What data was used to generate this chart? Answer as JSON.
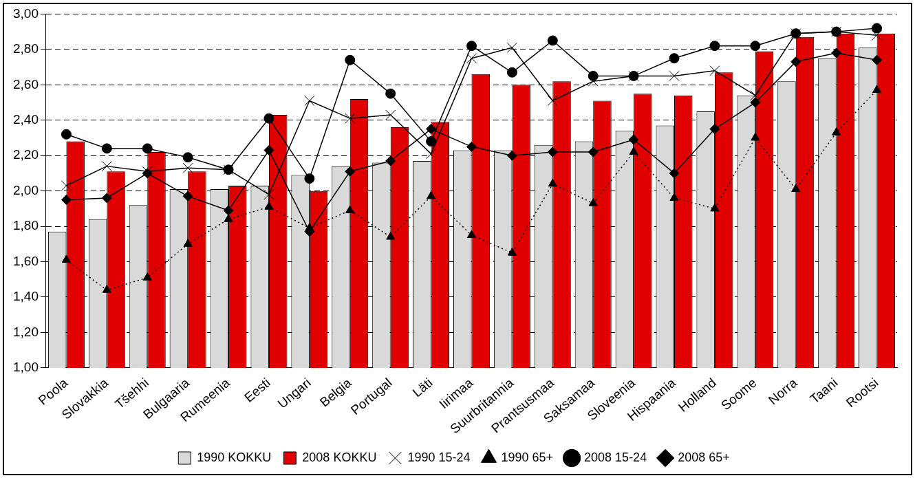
{
  "chart_data": {
    "type": "bar",
    "categories": [
      "Poola",
      "Slovakkia",
      "Tšehhi",
      "Bulgaaria",
      "Rumeenia",
      "Eesti",
      "Ungari",
      "Belgia",
      "Portugal",
      "Läti",
      "Iirimaa",
      "Suurbritannia",
      "Prantsusmaa",
      "Saksamaa",
      "Sloveenia",
      "Hispaania",
      "Holland",
      "Soome",
      "Norra",
      "Taani",
      "Rootsi"
    ],
    "series": [
      {
        "name": "1990 KOKKU",
        "color": "#d9d9d9",
        "values": [
          1.77,
          1.84,
          1.92,
          2.01,
          2.01,
          2.03,
          2.09,
          2.14,
          2.16,
          2.17,
          2.23,
          2.23,
          2.26,
          2.28,
          2.34,
          2.37,
          2.45,
          2.54,
          2.62,
          2.75,
          2.81
        ]
      },
      {
        "name": "2008 KOKKU",
        "color": "#e00000",
        "values": [
          2.28,
          2.11,
          2.22,
          2.11,
          2.03,
          2.43,
          2.0,
          2.52,
          2.36,
          2.39,
          2.66,
          2.6,
          2.62,
          2.51,
          2.55,
          2.54,
          2.67,
          2.79,
          2.87,
          2.89,
          2.89
        ]
      },
      {
        "name": "1990 15-24",
        "type": "line",
        "color": "#000000",
        "marker": "cross",
        "line_style": "solid",
        "values": [
          2.03,
          2.14,
          2.11,
          2.13,
          2.12,
          1.98,
          2.51,
          2.41,
          2.43,
          2.21,
          2.75,
          2.81,
          2.51,
          2.62,
          2.65,
          2.65,
          2.68,
          2.54,
          2.89,
          2.9,
          2.88
        ]
      },
      {
        "name": "1990 65+",
        "type": "line",
        "color": "#000000",
        "marker": "triangle",
        "line_style": "dotted",
        "values": [
          1.61,
          1.44,
          1.51,
          1.7,
          1.84,
          1.91,
          1.79,
          1.89,
          1.74,
          1.97,
          1.75,
          1.65,
          2.04,
          1.93,
          2.22,
          1.96,
          1.9,
          2.3,
          2.01,
          2.33,
          2.57
        ]
      },
      {
        "name": "2008 15-24",
        "type": "line",
        "color": "#000000",
        "marker": "circle",
        "line_style": "solid",
        "values": [
          2.32,
          2.24,
          2.24,
          2.19,
          2.12,
          2.41,
          2.07,
          2.74,
          2.55,
          2.28,
          2.82,
          2.67,
          2.85,
          2.65,
          2.65,
          2.75,
          2.82,
          2.82,
          2.89,
          2.9,
          2.92
        ]
      },
      {
        "name": "2008 65+",
        "type": "line",
        "color": "#000000",
        "marker": "diamond",
        "line_style": "solid",
        "values": [
          1.95,
          1.96,
          2.1,
          1.97,
          1.89,
          2.23,
          1.77,
          2.11,
          2.17,
          2.35,
          2.25,
          2.2,
          2.22,
          2.22,
          2.29,
          2.1,
          2.35,
          2.5,
          2.73,
          2.78,
          2.74
        ]
      }
    ],
    "ylim": [
      1.0,
      3.0
    ],
    "yticks": [
      {
        "value": 1.0,
        "label": "1,00"
      },
      {
        "value": 1.2,
        "label": "1,20"
      },
      {
        "value": 1.4,
        "label": "1,40"
      },
      {
        "value": 1.6,
        "label": "1,60"
      },
      {
        "value": 1.8,
        "label": "1,80"
      },
      {
        "value": 2.0,
        "label": "2,00"
      },
      {
        "value": 2.2,
        "label": "2,20"
      },
      {
        "value": 2.4,
        "label": "2,40"
      },
      {
        "value": 2.6,
        "label": "2,60"
      },
      {
        "value": 2.8,
        "label": "2,80"
      },
      {
        "value": 3.0,
        "label": "3,00"
      }
    ],
    "grid": "y",
    "legend": "bottom"
  }
}
